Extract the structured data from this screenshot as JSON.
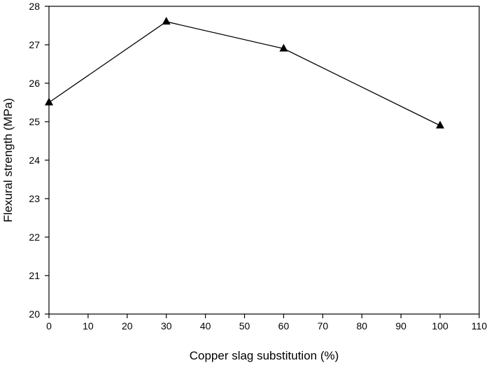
{
  "chart_data": {
    "type": "line",
    "title": "",
    "xlabel": "Copper slag substitution (%)",
    "ylabel": "Flexural strength (MPa)",
    "xlim": [
      0,
      110
    ],
    "ylim": [
      20,
      28
    ],
    "xticks": [
      0,
      10,
      20,
      30,
      40,
      50,
      60,
      70,
      80,
      90,
      100,
      110
    ],
    "yticks": [
      20,
      21,
      22,
      23,
      24,
      25,
      26,
      27,
      28
    ],
    "grid": false,
    "legend": "none",
    "marker": "triangle-up",
    "series": [
      {
        "x": [
          0,
          30,
          60,
          100
        ],
        "y": [
          25.5,
          27.6,
          26.9,
          24.9
        ]
      }
    ],
    "colors": {
      "line": "#000000",
      "marker": "#000000",
      "axes": "#000000"
    }
  }
}
